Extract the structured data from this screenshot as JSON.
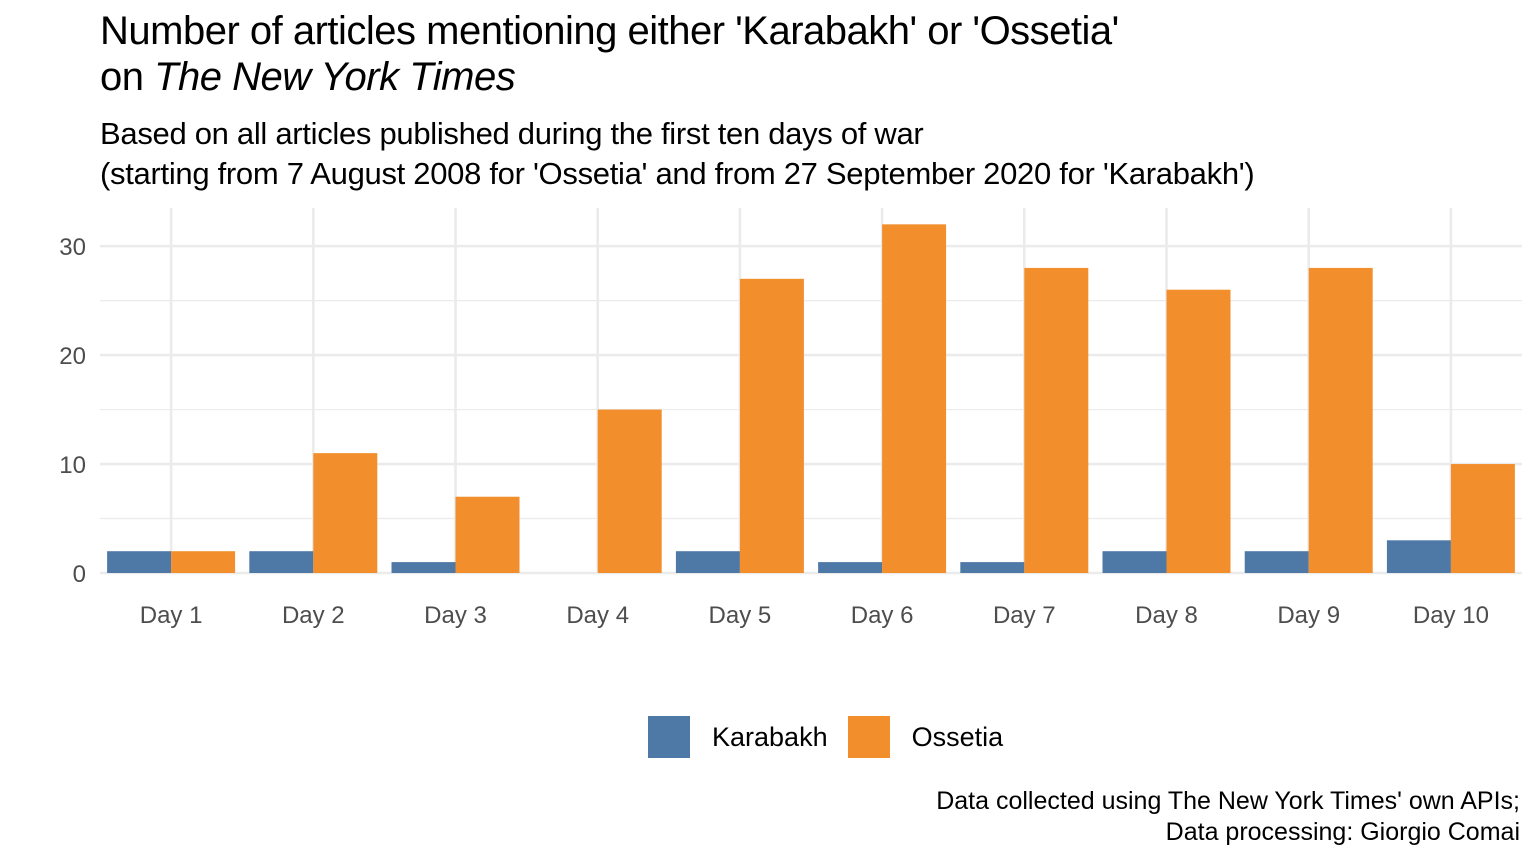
{
  "title_line1": "Number of articles mentioning either 'Karabakh' or 'Ossetia'",
  "title_line2_prefix": "on ",
  "title_line2_italic": "The New York Times",
  "subtitle_line1": "Based on all articles published during the first ten days of war",
  "subtitle_line2": "(starting from 7 August 2008 for 'Ossetia' and from 27 September 2020 for 'Karabakh')",
  "caption_line1": "Data collected using The New York Times' own APIs;",
  "caption_line2": "Data processing: Giorgio Comai",
  "colors": {
    "Karabakh": "#4e79a7",
    "Ossetia": "#f28e2b",
    "grid": "#ebebeb",
    "tick": "#4d4d4d"
  },
  "chart_data": {
    "type": "bar",
    "title": "Number of articles mentioning either 'Karabakh' or 'Ossetia' on The New York Times",
    "xlabel": "",
    "ylabel": "",
    "categories": [
      "Day 1",
      "Day 2",
      "Day 3",
      "Day 4",
      "Day 5",
      "Day 6",
      "Day 7",
      "Day 8",
      "Day 9",
      "Day 10"
    ],
    "series": [
      {
        "name": "Karabakh",
        "values": [
          2,
          2,
          1,
          0,
          2,
          1,
          1,
          2,
          2,
          3
        ]
      },
      {
        "name": "Ossetia",
        "values": [
          2,
          11,
          7,
          15,
          27,
          32,
          28,
          26,
          28,
          10
        ]
      }
    ],
    "ylim": [
      0,
      33.5
    ],
    "yticks": [
      0,
      10,
      20,
      30
    ],
    "grid": true,
    "legend": "bottom"
  }
}
